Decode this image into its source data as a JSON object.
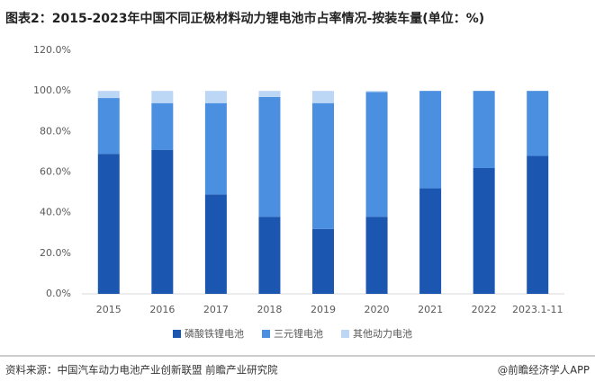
{
  "chart_data": {
    "type": "stacked_bar",
    "title": "图表2：2015-2023年中国不同正极材料动力锂电池市占率情况-按装车量(单位：%)",
    "categories": [
      "2015",
      "2016",
      "2017",
      "2018",
      "2019",
      "2020",
      "2021",
      "2022",
      "2023.1-11"
    ],
    "series": [
      {
        "name": "磷酸铁锂电池",
        "color": "#1b56b1",
        "values": [
          69,
          71,
          49,
          38,
          32,
          38,
          52,
          62,
          68
        ]
      },
      {
        "name": "三元锂电池",
        "color": "#4b8fe0",
        "values": [
          27.5,
          23,
          45,
          59,
          62,
          61.5,
          48,
          38,
          32
        ]
      },
      {
        "name": "其他动力电池",
        "color": "#bcd6f5",
        "values": [
          3.5,
          6,
          6,
          3,
          6,
          0.5,
          0,
          0,
          0
        ]
      }
    ],
    "ylim": [
      0,
      120
    ],
    "yticks": [
      {
        "value": 0,
        "label": "0.0%"
      },
      {
        "value": 20,
        "label": "20.0%"
      },
      {
        "value": 40,
        "label": "40.0%"
      },
      {
        "value": 60,
        "label": "60.0%"
      },
      {
        "value": 80,
        "label": "80.0%"
      },
      {
        "value": 100,
        "label": "100.0%"
      },
      {
        "value": 120,
        "label": "120.0%"
      }
    ],
    "grid": false,
    "source": "资料来源：中国汽车动力电池产业创新联盟 前瞻产业研究院",
    "brand": "@前瞻经济学人APP"
  }
}
